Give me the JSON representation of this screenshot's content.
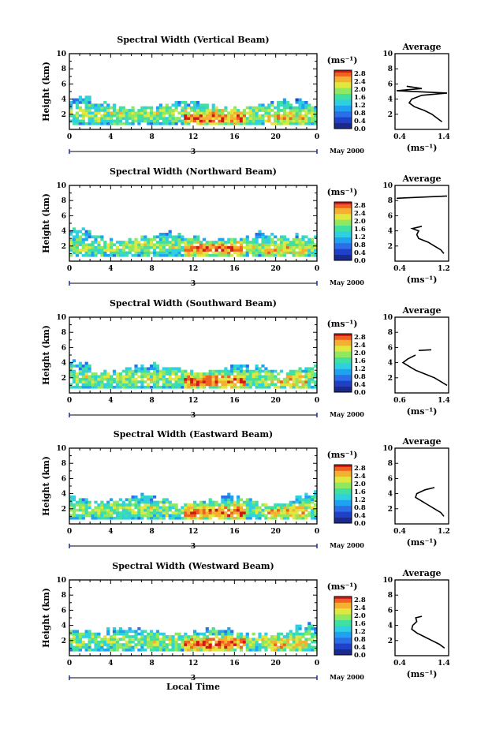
{
  "chart_data": [
    {
      "type": "heatmap",
      "title": "Spectral Width (Vertical Beam)",
      "ylabel": "Height (km)",
      "xlim": [
        0,
        24
      ],
      "ylim": [
        0,
        10
      ],
      "xticks": [
        "0",
        "4",
        "8",
        "12",
        "16",
        "20",
        "0"
      ],
      "yticks": [
        "2",
        "4",
        "6",
        "8",
        "10"
      ],
      "day": "3",
      "date": "May 2000",
      "colorbar": {
        "unit": "(ms⁻¹)",
        "ticks": [
          "2.8",
          "2.4",
          "2.0",
          "1.6",
          "1.2",
          "0.8",
          "0.4",
          "0.0"
        ]
      },
      "profile": {
        "title": "Average",
        "xlabel": "(ms⁻¹)",
        "xticks": [
          "0.4",
          "1.4"
        ],
        "xlim": [
          0.4,
          1.4
        ],
        "yticks": [
          "2",
          "4",
          "6",
          "8",
          "10"
        ],
        "segments": [
          [
            [
              1.3,
              1.0
            ],
            [
              1.2,
              1.5
            ],
            [
              1.1,
              2.0
            ],
            [
              0.95,
              2.5
            ],
            [
              0.75,
              3.0
            ],
            [
              0.65,
              3.5
            ],
            [
              0.7,
              4.0
            ],
            [
              0.9,
              4.5
            ],
            [
              1.4,
              4.8
            ],
            [
              0.4,
              5.1
            ],
            [
              0.9,
              5.4
            ],
            [
              0.6,
              5.7
            ]
          ]
        ]
      }
    },
    {
      "type": "heatmap",
      "title": "Spectral Width (Northward Beam)",
      "ylabel": "Height (km)",
      "xlim": [
        0,
        24
      ],
      "ylim": [
        0,
        10
      ],
      "xticks": [
        "0",
        "4",
        "8",
        "12",
        "16",
        "20",
        "0"
      ],
      "yticks": [
        "2",
        "4",
        "6",
        "8",
        "10"
      ],
      "day": "3",
      "date": "May 2000",
      "colorbar": {
        "unit": "(ms⁻¹)",
        "ticks": [
          "2.8",
          "2.4",
          "2.0",
          "1.6",
          "1.2",
          "0.8",
          "0.4",
          "0.0"
        ]
      },
      "profile": {
        "title": "Average",
        "xlabel": "(ms⁻¹)",
        "xticks": [
          "0.4",
          "1.2"
        ],
        "xlim": [
          0.4,
          1.2
        ],
        "yticks": [
          "2",
          "4",
          "6",
          "8",
          "10"
        ],
        "segments": [
          [
            [
              1.15,
              1.0
            ],
            [
              1.1,
              1.5
            ],
            [
              1.0,
              2.0
            ],
            [
              0.9,
              2.5
            ],
            [
              0.75,
              3.0
            ],
            [
              0.72,
              3.5
            ],
            [
              0.75,
              4.0
            ],
            [
              0.65,
              4.3
            ],
            [
              0.8,
              4.6
            ]
          ],
          [
            [
              0.4,
              8.3
            ],
            [
              1.2,
              8.6
            ]
          ]
        ]
      }
    },
    {
      "type": "heatmap",
      "title": "Spectral Width (Southward Beam)",
      "ylabel": "Height (km)",
      "xlim": [
        0,
        24
      ],
      "ylim": [
        0,
        10
      ],
      "xticks": [
        "0",
        "4",
        "8",
        "12",
        "16",
        "20",
        "0"
      ],
      "yticks": [
        "2",
        "4",
        "6",
        "8",
        "10"
      ],
      "day": "3",
      "date": "May 2000",
      "colorbar": {
        "unit": "(ms⁻¹)",
        "ticks": [
          "2.8",
          "2.4",
          "2.0",
          "1.6",
          "1.2",
          "0.8",
          "0.4",
          "0.0"
        ]
      },
      "profile": {
        "title": "Average",
        "xlabel": "(ms⁻¹)",
        "xticks": [
          "0.6",
          "1.4"
        ],
        "xlim": [
          0.6,
          1.4
        ],
        "yticks": [
          "2",
          "4",
          "6",
          "8",
          "10"
        ],
        "segments": [
          [
            [
              1.4,
              1.0
            ],
            [
              1.3,
              1.5
            ],
            [
              1.2,
              2.0
            ],
            [
              1.05,
              2.5
            ],
            [
              0.9,
              3.0
            ],
            [
              0.8,
              3.5
            ],
            [
              0.7,
              4.0
            ],
            [
              0.78,
              4.5
            ],
            [
              0.9,
              5.0
            ]
          ],
          [
            [
              0.95,
              5.6
            ],
            [
              1.15,
              5.7
            ]
          ]
        ]
      }
    },
    {
      "type": "heatmap",
      "title": "Spectral Width (Eastward Beam)",
      "ylabel": "Height (km)",
      "xlim": [
        0,
        24
      ],
      "ylim": [
        0,
        10
      ],
      "xticks": [
        "0",
        "4",
        "8",
        "12",
        "16",
        "20",
        "0"
      ],
      "yticks": [
        "2",
        "4",
        "6",
        "8",
        "10"
      ],
      "day": "3",
      "date": "May 2000",
      "colorbar": {
        "unit": "(ms⁻¹)",
        "ticks": [
          "2.8",
          "2.4",
          "2.0",
          "1.6",
          "1.2",
          "0.8",
          "0.4",
          "0.0"
        ]
      },
      "profile": {
        "title": "Average",
        "xlabel": "(ms⁻¹)",
        "xticks": [
          "0.4",
          "1.2"
        ],
        "xlim": [
          0.4,
          1.2
        ],
        "yticks": [
          "2",
          "4",
          "6",
          "8",
          "10"
        ],
        "segments": [
          [
            [
              1.15,
              1.0
            ],
            [
              1.1,
              1.5
            ],
            [
              1.0,
              2.0
            ],
            [
              0.9,
              2.5
            ],
            [
              0.8,
              3.0
            ],
            [
              0.7,
              3.5
            ],
            [
              0.72,
              4.0
            ],
            [
              0.85,
              4.5
            ],
            [
              1.0,
              4.8
            ]
          ]
        ]
      }
    },
    {
      "type": "heatmap",
      "title": "Spectral Width (Westward Beam)",
      "ylabel": "Height (km)",
      "xlim": [
        0,
        24
      ],
      "ylim": [
        0,
        10
      ],
      "xticks": [
        "0",
        "4",
        "8",
        "12",
        "16",
        "20",
        "0"
      ],
      "yticks": [
        "2",
        "4",
        "6",
        "8",
        "10"
      ],
      "day": "3",
      "date": "May 2000",
      "xlabel": "Local Time",
      "colorbar": {
        "unit": "(ms⁻¹)",
        "ticks": [
          "2.8",
          "2.4",
          "2.0",
          "1.6",
          "1.2",
          "0.8",
          "0.4",
          "0.0"
        ]
      },
      "profile": {
        "title": "Average",
        "xlabel": "(ms⁻¹)",
        "xticks": [
          "0.4",
          "1.4"
        ],
        "xlim": [
          0.4,
          1.4
        ],
        "yticks": [
          "2",
          "4",
          "6",
          "8",
          "10"
        ],
        "segments": [
          [
            [
              1.35,
              1.0
            ],
            [
              1.25,
              1.5
            ],
            [
              1.1,
              2.0
            ],
            [
              0.95,
              2.5
            ],
            [
              0.8,
              3.0
            ],
            [
              0.7,
              3.5
            ],
            [
              0.72,
              4.0
            ],
            [
              0.8,
              4.5
            ],
            [
              0.78,
              5.0
            ],
            [
              0.9,
              5.2
            ]
          ]
        ]
      }
    }
  ]
}
